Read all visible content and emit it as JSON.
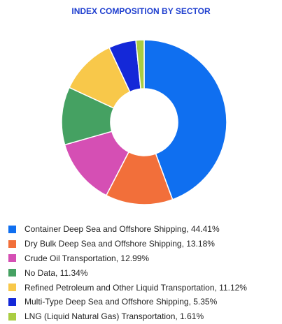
{
  "chart_data": {
    "type": "pie",
    "style": "donut",
    "title": "INDEX COMPOSITION BY SECTOR",
    "legend_position": "bottom",
    "categories": [
      "Container Deep Sea and Offshore Shipping",
      "Dry Bulk Deep Sea and Offshore Shipping",
      "Crude Oil Transportation",
      "No Data",
      "Refined Petroleum and Other Liquid Transportation",
      "Multi-Type Deep Sea and Offshore Shipping",
      "LNG (Liquid Natural Gas) Transportation"
    ],
    "values": [
      44.41,
      13.18,
      12.99,
      11.34,
      11.12,
      5.35,
      1.61
    ],
    "colors": [
      "#0f6ff0",
      "#f26f3a",
      "#d54fb4",
      "#45a162",
      "#f8c84a",
      "#1428d8",
      "#aacd42"
    ],
    "legend_labels": [
      "Container Deep Sea and Offshore Shipping, 44.41%",
      "Dry Bulk Deep Sea and Offshore Shipping, 13.18%",
      "Crude Oil Transportation, 12.99%",
      "No Data, 11.34%",
      "Refined Petroleum and Other Liquid Transportation, 11.12%",
      "Multi-Type Deep Sea and Offshore Shipping, 5.35%",
      "LNG (Liquid Natural Gas) Transportation, 1.61%"
    ]
  }
}
